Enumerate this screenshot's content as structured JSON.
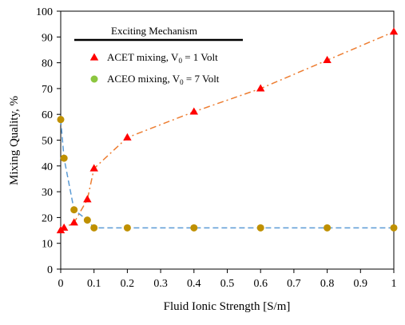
{
  "chart_data": {
    "type": "scatter",
    "title": "",
    "xlabel": "Fluid Ionic Strength [S/m]",
    "ylabel": "Mixing Quality, %",
    "xlim": [
      0,
      1
    ],
    "ylim": [
      0,
      100
    ],
    "x_ticks": [
      0,
      0.1,
      0.2,
      0.3,
      0.4,
      0.5,
      0.6,
      0.7,
      0.8,
      0.9,
      1
    ],
    "y_ticks": [
      0,
      10,
      20,
      30,
      40,
      50,
      60,
      70,
      80,
      90,
      100
    ],
    "grid": false,
    "legend": {
      "title": "Exciting Mechanism",
      "placement": "top-left"
    },
    "series": [
      {
        "name": "ACET mixing,  V0 = 1 Volt",
        "label_main": "ACET mixing,  V",
        "label_sub": "0",
        "label_rest": " = 1 Volt",
        "marker": "triangle",
        "marker_color": "#ff0000",
        "line_color": "#ed7d31",
        "line_style": "dash-dot",
        "x": [
          0,
          0.01,
          0.04,
          0.08,
          0.1,
          0.2,
          0.4,
          0.6,
          0.8,
          1
        ],
        "y": [
          15,
          16,
          18,
          27,
          39,
          51,
          61,
          70,
          81,
          92
        ]
      },
      {
        "name": "ACEO mixing,  V0 = 7 Volt",
        "label_main": "ACEO mixing,  V",
        "label_sub": "0",
        "label_rest": " = 7 Volt",
        "marker": "circle",
        "marker_color": "#bf9000",
        "legend_marker_color": "#8cc63f",
        "line_color": "#5b9bd5",
        "line_style": "dashed",
        "x": [
          0,
          0.01,
          0.04,
          0.08,
          0.1,
          0.2,
          0.4,
          0.6,
          0.8,
          1
        ],
        "y": [
          58,
          43,
          23,
          19,
          16,
          16,
          16,
          16,
          16,
          16
        ]
      }
    ]
  }
}
